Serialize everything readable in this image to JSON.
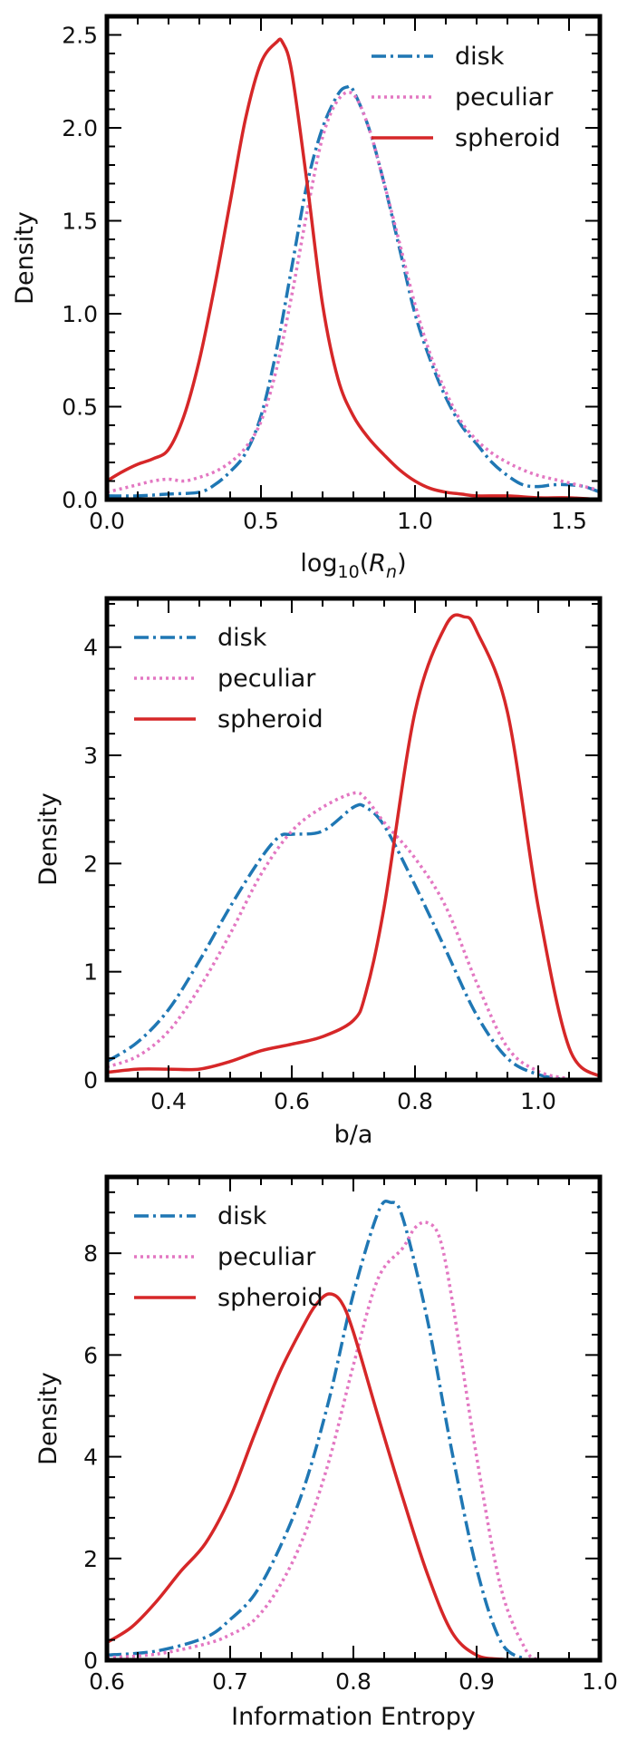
{
  "chart_data": [
    {
      "type": "line",
      "xlabel": "log10(Rn)",
      "xlabel_parts": {
        "base": "log",
        "sub": "10",
        "open": "(",
        "var": "R",
        "var_sub": "n",
        "close": ")"
      },
      "ylabel": "Density",
      "xlim": [
        0.0,
        1.6
      ],
      "ylim": [
        0.0,
        2.6
      ],
      "xticks": [
        0.0,
        0.5,
        1.0,
        1.5
      ],
      "xtick_labels": [
        "0.0",
        "0.5",
        "1.0",
        "1.5"
      ],
      "xminor": 0.1,
      "yticks": [
        0.0,
        0.5,
        1.0,
        1.5,
        2.0,
        2.5
      ],
      "ytick_labels": [
        "0.0",
        "0.5",
        "1.0",
        "1.5",
        "2.0",
        "2.5"
      ],
      "yminor": 0.1,
      "legend_position": "top-right",
      "series": [
        {
          "name": "disk",
          "color": "#1f77b4",
          "style": "dashdot",
          "x": [
            0.0,
            0.1,
            0.2,
            0.3,
            0.35,
            0.4,
            0.45,
            0.5,
            0.55,
            0.6,
            0.65,
            0.7,
            0.75,
            0.78,
            0.8,
            0.85,
            0.9,
            0.95,
            1.0,
            1.05,
            1.1,
            1.15,
            1.2,
            1.25,
            1.3,
            1.35,
            1.4,
            1.45,
            1.5,
            1.55,
            1.6
          ],
          "y": [
            0.02,
            0.02,
            0.03,
            0.04,
            0.08,
            0.15,
            0.25,
            0.45,
            0.8,
            1.25,
            1.7,
            2.0,
            2.18,
            2.22,
            2.2,
            2.0,
            1.7,
            1.35,
            1.0,
            0.75,
            0.55,
            0.4,
            0.3,
            0.2,
            0.13,
            0.08,
            0.07,
            0.08,
            0.08,
            0.07,
            0.04
          ]
        },
        {
          "name": "peculiar",
          "color": "#e377c2",
          "style": "dotted",
          "x": [
            0.0,
            0.05,
            0.1,
            0.15,
            0.2,
            0.25,
            0.3,
            0.35,
            0.4,
            0.45,
            0.5,
            0.55,
            0.6,
            0.65,
            0.7,
            0.75,
            0.8,
            0.85,
            0.9,
            0.95,
            1.0,
            1.05,
            1.1,
            1.15,
            1.2,
            1.25,
            1.3,
            1.35,
            1.4,
            1.45,
            1.5,
            1.55,
            1.6
          ],
          "y": [
            0.04,
            0.06,
            0.08,
            0.1,
            0.11,
            0.1,
            0.12,
            0.15,
            0.2,
            0.28,
            0.42,
            0.7,
            1.1,
            1.55,
            1.95,
            2.15,
            2.18,
            2.0,
            1.7,
            1.38,
            1.05,
            0.78,
            0.58,
            0.42,
            0.32,
            0.25,
            0.2,
            0.16,
            0.13,
            0.11,
            0.09,
            0.07,
            0.05
          ]
        },
        {
          "name": "spheroid",
          "color": "#d62728",
          "style": "solid",
          "x": [
            0.0,
            0.05,
            0.1,
            0.15,
            0.2,
            0.25,
            0.3,
            0.35,
            0.4,
            0.45,
            0.5,
            0.55,
            0.57,
            0.6,
            0.65,
            0.7,
            0.75,
            0.8,
            0.85,
            0.9,
            0.95,
            1.0,
            1.05,
            1.1,
            1.15,
            1.2,
            1.3,
            1.4,
            1.5,
            1.6
          ],
          "y": [
            0.1,
            0.15,
            0.19,
            0.22,
            0.27,
            0.45,
            0.75,
            1.15,
            1.6,
            2.05,
            2.35,
            2.46,
            2.46,
            2.3,
            1.7,
            1.05,
            0.65,
            0.45,
            0.33,
            0.24,
            0.16,
            0.1,
            0.06,
            0.04,
            0.03,
            0.02,
            0.02,
            0.01,
            0.01,
            0.0
          ]
        }
      ]
    },
    {
      "type": "line",
      "xlabel": "b/a",
      "ylabel": "Density",
      "xlim": [
        0.3,
        1.1
      ],
      "ylim": [
        0.0,
        4.45
      ],
      "xticks": [
        0.4,
        0.6,
        0.8,
        1.0
      ],
      "xtick_labels": [
        "0.4",
        "0.6",
        "0.8",
        "1.0"
      ],
      "xminor": 0.05,
      "yticks": [
        0,
        1,
        2,
        3,
        4
      ],
      "ytick_labels": [
        "0",
        "1",
        "2",
        "3",
        "4"
      ],
      "yminor": 0.2,
      "legend_position": "top-left",
      "series": [
        {
          "name": "disk",
          "color": "#1f77b4",
          "style": "dashdot",
          "x": [
            0.3,
            0.35,
            0.4,
            0.45,
            0.5,
            0.55,
            0.58,
            0.6,
            0.65,
            0.7,
            0.72,
            0.75,
            0.8,
            0.85,
            0.9,
            0.95,
            1.0,
            1.05
          ],
          "y": [
            0.17,
            0.35,
            0.65,
            1.1,
            1.6,
            2.05,
            2.25,
            2.27,
            2.3,
            2.52,
            2.52,
            2.35,
            1.8,
            1.2,
            0.6,
            0.2,
            0.05,
            0.0
          ]
        },
        {
          "name": "peculiar",
          "color": "#e377c2",
          "style": "dotted",
          "x": [
            0.3,
            0.35,
            0.4,
            0.45,
            0.5,
            0.55,
            0.6,
            0.65,
            0.7,
            0.72,
            0.75,
            0.8,
            0.85,
            0.9,
            0.95,
            1.0,
            1.05
          ],
          "y": [
            0.12,
            0.22,
            0.45,
            0.85,
            1.35,
            1.9,
            2.3,
            2.52,
            2.65,
            2.6,
            2.38,
            2.05,
            1.6,
            0.9,
            0.3,
            0.08,
            0.01
          ]
        },
        {
          "name": "spheroid",
          "color": "#d62728",
          "style": "solid",
          "x": [
            0.3,
            0.35,
            0.4,
            0.45,
            0.5,
            0.55,
            0.6,
            0.65,
            0.7,
            0.72,
            0.75,
            0.8,
            0.85,
            0.88,
            0.9,
            0.95,
            1.0,
            1.05,
            1.1
          ],
          "y": [
            0.07,
            0.1,
            0.1,
            0.1,
            0.17,
            0.27,
            0.33,
            0.4,
            0.55,
            0.8,
            1.6,
            3.4,
            4.2,
            4.28,
            4.15,
            3.4,
            1.6,
            0.3,
            0.03
          ]
        }
      ]
    },
    {
      "type": "line",
      "xlabel": "Information Entropy",
      "ylabel": "Density",
      "xlim": [
        0.6,
        1.0
      ],
      "ylim": [
        0.0,
        9.5
      ],
      "xticks": [
        0.6,
        0.7,
        0.8,
        0.9,
        1.0
      ],
      "xtick_labels": [
        "0.6",
        "0.7",
        "0.8",
        "0.9",
        "1.0"
      ],
      "xminor": 0.025,
      "yticks": [
        0,
        2,
        4,
        6,
        8
      ],
      "ytick_labels": [
        "0",
        "2",
        "4",
        "6",
        "8"
      ],
      "yminor": 0.4,
      "legend_position": "top-left",
      "series": [
        {
          "name": "disk",
          "color": "#1f77b4",
          "style": "dashdot",
          "x": [
            0.6,
            0.64,
            0.68,
            0.7,
            0.72,
            0.74,
            0.76,
            0.78,
            0.8,
            0.82,
            0.83,
            0.84,
            0.86,
            0.88,
            0.9,
            0.92,
            0.94
          ],
          "y": [
            0.1,
            0.18,
            0.45,
            0.8,
            1.3,
            2.2,
            3.4,
            5.1,
            7.2,
            8.8,
            9.0,
            8.7,
            6.7,
            4.1,
            1.8,
            0.35,
            0.02
          ]
        },
        {
          "name": "peculiar",
          "color": "#e377c2",
          "style": "dotted",
          "x": [
            0.6,
            0.64,
            0.68,
            0.7,
            0.72,
            0.74,
            0.76,
            0.78,
            0.8,
            0.82,
            0.84,
            0.85,
            0.86,
            0.87,
            0.88,
            0.9,
            0.92,
            0.94,
            0.95
          ],
          "y": [
            0.05,
            0.12,
            0.32,
            0.5,
            0.8,
            1.45,
            2.45,
            3.9,
            5.8,
            7.5,
            8.1,
            8.5,
            8.6,
            8.3,
            7.1,
            4.0,
            1.4,
            0.2,
            0.02
          ]
        },
        {
          "name": "spheroid",
          "color": "#d62728",
          "style": "solid",
          "x": [
            0.6,
            0.62,
            0.64,
            0.66,
            0.68,
            0.7,
            0.72,
            0.74,
            0.76,
            0.77,
            0.78,
            0.79,
            0.8,
            0.82,
            0.84,
            0.86,
            0.88,
            0.9,
            0.92,
            0.94,
            0.96
          ],
          "y": [
            0.35,
            0.65,
            1.15,
            1.75,
            2.3,
            3.2,
            4.45,
            5.65,
            6.6,
            7.0,
            7.2,
            7.05,
            6.45,
            4.8,
            3.2,
            1.7,
            0.55,
            0.1,
            0.02,
            0.0,
            0.0
          ]
        }
      ]
    }
  ]
}
